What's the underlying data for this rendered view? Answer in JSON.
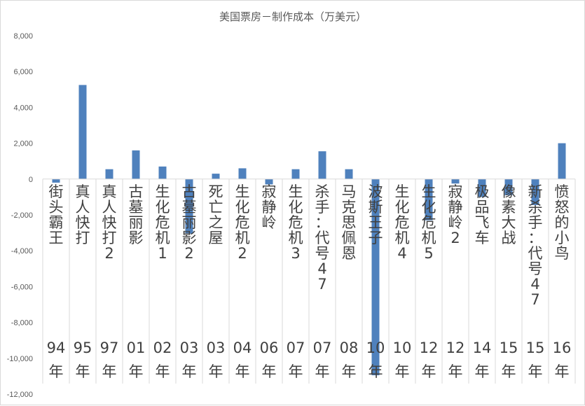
{
  "chart_data": {
    "type": "bar",
    "title": "美国票房－制作成本（万美元）",
    "categories": [
      {
        "name": "街头霸王",
        "year": "94年"
      },
      {
        "name": "真人快打",
        "year": "95年"
      },
      {
        "name": "真人快打2",
        "year": "97年"
      },
      {
        "name": "古墓丽影",
        "year": "01年"
      },
      {
        "name": "生化危机1",
        "year": "02年"
      },
      {
        "name": "古墓丽影2",
        "year": "03年"
      },
      {
        "name": "死亡之屋",
        "year": "03年"
      },
      {
        "name": "生化危机2",
        "year": "04年"
      },
      {
        "name": "寂静岭",
        "year": "06年"
      },
      {
        "name": "生化危机3",
        "year": "07年"
      },
      {
        "name": "杀手：代号47",
        "year": "07年"
      },
      {
        "name": "马克思佩恩",
        "year": "08年"
      },
      {
        "name": "波斯王子",
        "year": "10年"
      },
      {
        "name": "生化危机4",
        "year": "10年"
      },
      {
        "name": "生化危机5",
        "year": "12年"
      },
      {
        "name": "寂静岭2",
        "year": "12年"
      },
      {
        "name": "极品飞车",
        "year": "14年"
      },
      {
        "name": "像素大战",
        "year": "15年"
      },
      {
        "name": "新杀手：代号47",
        "year": "15年"
      },
      {
        "name": "愤怒的小鸟",
        "year": "16年"
      }
    ],
    "values": [
      -200,
      5250,
      550,
      1600,
      700,
      -3050,
      300,
      600,
      -300,
      550,
      1550,
      550,
      -10950,
      0,
      -2300,
      -250,
      -1000,
      -900,
      -1450,
      2000
    ],
    "ylim": [
      -12000,
      8000
    ],
    "yticks": [
      -12000,
      -10000,
      -8000,
      -6000,
      -4000,
      -2000,
      0,
      2000,
      4000,
      6000,
      8000
    ],
    "ytick_labels": [
      "-12,000",
      "-10,000",
      "-8,000",
      "-6,000",
      "-4,000",
      "-2,000",
      "0",
      "2,000",
      "4,000",
      "6,000",
      "8,000"
    ],
    "grid": false,
    "bar_color": "#4f81bd"
  }
}
